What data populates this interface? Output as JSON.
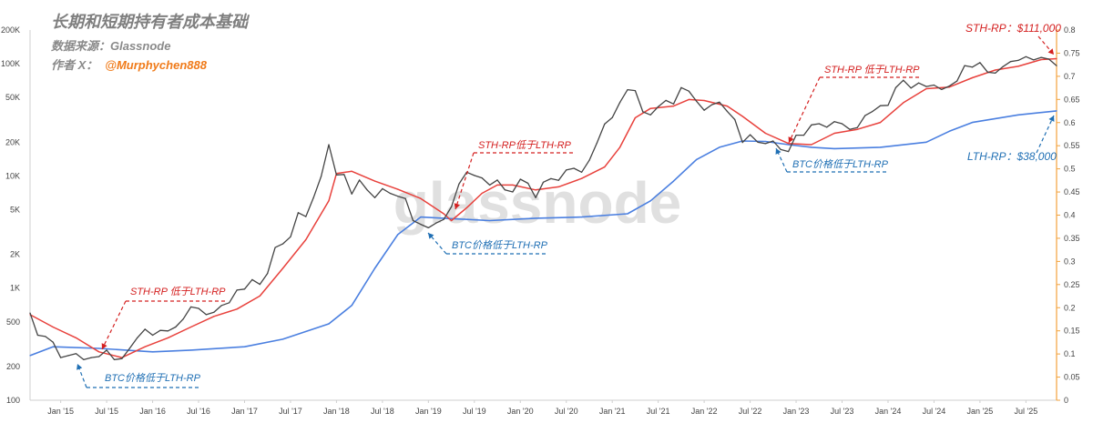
{
  "header": {
    "title": "长期和短期持有者成本基础",
    "source": "数据来源：Glassnode",
    "author_label": "作者 X：",
    "author_handle": "@Murphychen888"
  },
  "watermark": "glassnode",
  "colors": {
    "price": "#444444",
    "sth_rp": "#e8413c",
    "lth_rp": "#4a7fe0",
    "annotation_red": "#d42020",
    "annotation_blue": "#1f6fb4",
    "right_axis": "#f2a23c"
  },
  "chart_data": {
    "type": "line",
    "title": "长期和短期持有者成本基础",
    "x_range": [
      "2014-09",
      "2025-11"
    ],
    "x_ticks": [
      "Jan '15",
      "Jul '15",
      "Jan '16",
      "Jul '16",
      "Jan '17",
      "Jul '17",
      "Jan '18",
      "Jul '18",
      "Jan '19",
      "Jul '19",
      "Jan '20",
      "Jul '20",
      "Jan '21",
      "Jul '21",
      "Jan '22",
      "Jul '22",
      "Jan '23",
      "Jul '23",
      "Jan '24",
      "Jul '24",
      "Jan '25",
      "Jul '25"
    ],
    "y_left": {
      "scale": "log",
      "range": [
        100,
        200000
      ],
      "ticks": [
        "100",
        "200",
        "500",
        "1K",
        "2K",
        "5K",
        "10K",
        "20K",
        "50K",
        "100K",
        "200K"
      ]
    },
    "y_right": {
      "scale": "linear",
      "range": [
        0,
        0.8
      ],
      "ticks": [
        "0",
        "0.05",
        "0.1",
        "0.15",
        "0.2",
        "0.25",
        "0.3",
        "0.35",
        "0.4",
        "0.45",
        "0.5",
        "0.55",
        "0.6",
        "0.65",
        "0.7",
        "0.75",
        "0.8"
      ]
    },
    "grid": false,
    "series": [
      {
        "key": "price",
        "points": [
          [
            "2014-09",
            600
          ],
          [
            "2014-10",
            380
          ],
          [
            "2014-11",
            370
          ],
          [
            "2014-12",
            330
          ],
          [
            "2015-01",
            240
          ],
          [
            "2015-02",
            250
          ],
          [
            "2015-03",
            260
          ],
          [
            "2015-04",
            230
          ],
          [
            "2015-05",
            240
          ],
          [
            "2015-06",
            245
          ],
          [
            "2015-07",
            280
          ],
          [
            "2015-08",
            230
          ],
          [
            "2015-09",
            235
          ],
          [
            "2015-10",
            290
          ],
          [
            "2015-11",
            360
          ],
          [
            "2015-12",
            430
          ],
          [
            "2016-01",
            380
          ],
          [
            "2016-02",
            420
          ],
          [
            "2016-03",
            415
          ],
          [
            "2016-04",
            450
          ],
          [
            "2016-05",
            530
          ],
          [
            "2016-06",
            680
          ],
          [
            "2016-07",
            660
          ],
          [
            "2016-08",
            580
          ],
          [
            "2016-09",
            610
          ],
          [
            "2016-10",
            700
          ],
          [
            "2016-11",
            740
          ],
          [
            "2016-12",
            960
          ],
          [
            "2017-01",
            980
          ],
          [
            "2017-02",
            1190
          ],
          [
            "2017-03",
            1080
          ],
          [
            "2017-04",
            1350
          ],
          [
            "2017-05",
            2300
          ],
          [
            "2017-06",
            2480
          ],
          [
            "2017-07",
            2870
          ],
          [
            "2017-08",
            4700
          ],
          [
            "2017-09",
            4340
          ],
          [
            "2017-10",
            6400
          ],
          [
            "2017-11",
            9900
          ],
          [
            "2017-12",
            19000
          ],
          [
            "2018-01",
            10200
          ],
          [
            "2018-02",
            10300
          ],
          [
            "2018-03",
            6900
          ],
          [
            "2018-04",
            9200
          ],
          [
            "2018-05",
            7500
          ],
          [
            "2018-06",
            6400
          ],
          [
            "2018-07",
            7700
          ],
          [
            "2018-08",
            7000
          ],
          [
            "2018-09",
            6600
          ],
          [
            "2018-10",
            6300
          ],
          [
            "2018-11",
            4000
          ],
          [
            "2018-12",
            3700
          ],
          [
            "2019-01",
            3450
          ],
          [
            "2019-02",
            3800
          ],
          [
            "2019-03",
            4100
          ],
          [
            "2019-04",
            5300
          ],
          [
            "2019-05",
            8500
          ],
          [
            "2019-06",
            10800
          ],
          [
            "2019-07",
            10100
          ],
          [
            "2019-08",
            9600
          ],
          [
            "2019-09",
            8300
          ],
          [
            "2019-10",
            9200
          ],
          [
            "2019-11",
            7500
          ],
          [
            "2019-12",
            7200
          ],
          [
            "2020-01",
            9350
          ],
          [
            "2020-02",
            8600
          ],
          [
            "2020-03",
            6400
          ],
          [
            "2020-04",
            8800
          ],
          [
            "2020-05",
            9450
          ],
          [
            "2020-06",
            9150
          ],
          [
            "2020-07",
            11300
          ],
          [
            "2020-08",
            11700
          ],
          [
            "2020-09",
            10800
          ],
          [
            "2020-10",
            13800
          ],
          [
            "2020-11",
            19700
          ],
          [
            "2020-12",
            29000
          ],
          [
            "2021-01",
            33100
          ],
          [
            "2021-02",
            45200
          ],
          [
            "2021-03",
            58800
          ],
          [
            "2021-04",
            57700
          ],
          [
            "2021-05",
            37300
          ],
          [
            "2021-06",
            35000
          ],
          [
            "2021-07",
            41500
          ],
          [
            "2021-08",
            47100
          ],
          [
            "2021-09",
            43800
          ],
          [
            "2021-10",
            61300
          ],
          [
            "2021-11",
            57000
          ],
          [
            "2021-12",
            46300
          ],
          [
            "2022-01",
            38500
          ],
          [
            "2022-02",
            43200
          ],
          [
            "2022-03",
            45500
          ],
          [
            "2022-04",
            37700
          ],
          [
            "2022-05",
            31800
          ],
          [
            "2022-06",
            19900
          ],
          [
            "2022-07",
            23300
          ],
          [
            "2022-08",
            20000
          ],
          [
            "2022-09",
            19400
          ],
          [
            "2022-10",
            20500
          ],
          [
            "2022-11",
            17200
          ],
          [
            "2022-12",
            16500
          ],
          [
            "2023-01",
            23100
          ],
          [
            "2023-02",
            23100
          ],
          [
            "2023-03",
            28500
          ],
          [
            "2023-04",
            29200
          ],
          [
            "2023-05",
            27200
          ],
          [
            "2023-06",
            30500
          ],
          [
            "2023-07",
            29200
          ],
          [
            "2023-08",
            26000
          ],
          [
            "2023-09",
            27000
          ],
          [
            "2023-10",
            34500
          ],
          [
            "2023-11",
            37700
          ],
          [
            "2023-12",
            42300
          ],
          [
            "2024-01",
            42600
          ],
          [
            "2024-02",
            61200
          ],
          [
            "2024-03",
            71300
          ],
          [
            "2024-04",
            60700
          ],
          [
            "2024-05",
            67500
          ],
          [
            "2024-06",
            62700
          ],
          [
            "2024-07",
            64600
          ],
          [
            "2024-08",
            59000
          ],
          [
            "2024-09",
            63300
          ],
          [
            "2024-10",
            70200
          ],
          [
            "2024-11",
            96400
          ],
          [
            "2024-12",
            93400
          ],
          [
            "2025-01",
            102400
          ],
          [
            "2025-02",
            84300
          ],
          [
            "2025-03",
            82500
          ],
          [
            "2025-04",
            94200
          ],
          [
            "2025-05",
            104600
          ],
          [
            "2025-06",
            107100
          ],
          [
            "2025-07",
            115800
          ],
          [
            "2025-08",
            108200
          ],
          [
            "2025-09",
            114000
          ],
          [
            "2025-10",
            110000
          ],
          [
            "2025-11",
            96000
          ]
        ]
      },
      {
        "key": "sth_rp",
        "points": [
          [
            "2014-09",
            580
          ],
          [
            "2014-12",
            450
          ],
          [
            "2015-03",
            360
          ],
          [
            "2015-06",
            270
          ],
          [
            "2015-09",
            240
          ],
          [
            "2015-12",
            300
          ],
          [
            "2016-03",
            360
          ],
          [
            "2016-06",
            450
          ],
          [
            "2016-09",
            560
          ],
          [
            "2016-12",
            650
          ],
          [
            "2017-03",
            850
          ],
          [
            "2017-06",
            1500
          ],
          [
            "2017-09",
            2700
          ],
          [
            "2017-12",
            6000
          ],
          [
            "2018-01",
            10500
          ],
          [
            "2018-03",
            11000
          ],
          [
            "2018-06",
            9000
          ],
          [
            "2018-09",
            7600
          ],
          [
            "2018-12",
            6300
          ],
          [
            "2019-03",
            4600
          ],
          [
            "2019-04",
            4000
          ],
          [
            "2019-06",
            5200
          ],
          [
            "2019-08",
            7000
          ],
          [
            "2019-10",
            8300
          ],
          [
            "2019-12",
            8300
          ],
          [
            "2020-03",
            7500
          ],
          [
            "2020-06",
            8000
          ],
          [
            "2020-09",
            9500
          ],
          [
            "2020-12",
            12000
          ],
          [
            "2021-02",
            18000
          ],
          [
            "2021-04",
            33000
          ],
          [
            "2021-06",
            40000
          ],
          [
            "2021-09",
            42000
          ],
          [
            "2021-11",
            48000
          ],
          [
            "2022-01",
            47000
          ],
          [
            "2022-04",
            42000
          ],
          [
            "2022-06",
            34000
          ],
          [
            "2022-09",
            24000
          ],
          [
            "2022-12",
            19500
          ],
          [
            "2023-03",
            19000
          ],
          [
            "2023-06",
            24000
          ],
          [
            "2023-09",
            26000
          ],
          [
            "2023-12",
            30000
          ],
          [
            "2024-03",
            45000
          ],
          [
            "2024-06",
            60000
          ],
          [
            "2024-09",
            62000
          ],
          [
            "2024-12",
            75000
          ],
          [
            "2025-03",
            88000
          ],
          [
            "2025-06",
            95000
          ],
          [
            "2025-09",
            109000
          ],
          [
            "2025-11",
            111000
          ]
        ]
      },
      {
        "key": "lth_rp",
        "points": [
          [
            "2014-09",
            250
          ],
          [
            "2014-12",
            300
          ],
          [
            "2015-06",
            290
          ],
          [
            "2016-01",
            270
          ],
          [
            "2016-06",
            280
          ],
          [
            "2017-01",
            300
          ],
          [
            "2017-06",
            350
          ],
          [
            "2017-12",
            480
          ],
          [
            "2018-03",
            700
          ],
          [
            "2018-06",
            1500
          ],
          [
            "2018-09",
            3000
          ],
          [
            "2018-12",
            4300
          ],
          [
            "2019-03",
            4200
          ],
          [
            "2019-09",
            4000
          ],
          [
            "2020-03",
            4200
          ],
          [
            "2020-09",
            4300
          ],
          [
            "2021-03",
            4600
          ],
          [
            "2021-06",
            6000
          ],
          [
            "2021-09",
            9000
          ],
          [
            "2021-12",
            14000
          ],
          [
            "2022-03",
            18000
          ],
          [
            "2022-06",
            20500
          ],
          [
            "2022-09",
            20300
          ],
          [
            "2022-12",
            19000
          ],
          [
            "2023-03",
            18000
          ],
          [
            "2023-06",
            17500
          ],
          [
            "2023-12",
            18000
          ],
          [
            "2024-06",
            20000
          ],
          [
            "2024-09",
            25000
          ],
          [
            "2024-12",
            30000
          ],
          [
            "2025-06",
            35000
          ],
          [
            "2025-11",
            38000
          ]
        ]
      }
    ],
    "annotations": [
      {
        "key": "end_sth",
        "text": "STH-RP：$111,000",
        "color": "red"
      },
      {
        "key": "end_lth",
        "text": "LTH-RP：$38,000",
        "color": "blue"
      },
      {
        "key": "sth_2015",
        "text": "STH-RP 低于LTH-RP",
        "color": "red"
      },
      {
        "key": "btc_2015",
        "text": "BTC价格低于LTH-RP",
        "color": "blue"
      },
      {
        "key": "sth_2019",
        "text": "STH-RP低于LTH-RP",
        "color": "red"
      },
      {
        "key": "btc_2019",
        "text": "BTC价格低于LTH-RP",
        "color": "blue"
      },
      {
        "key": "sth_2023",
        "text": "STH-RP 低于LTH-RP",
        "color": "red"
      },
      {
        "key": "btc_2023",
        "text": "BTC价格低于LTH-RP",
        "color": "blue"
      }
    ]
  }
}
